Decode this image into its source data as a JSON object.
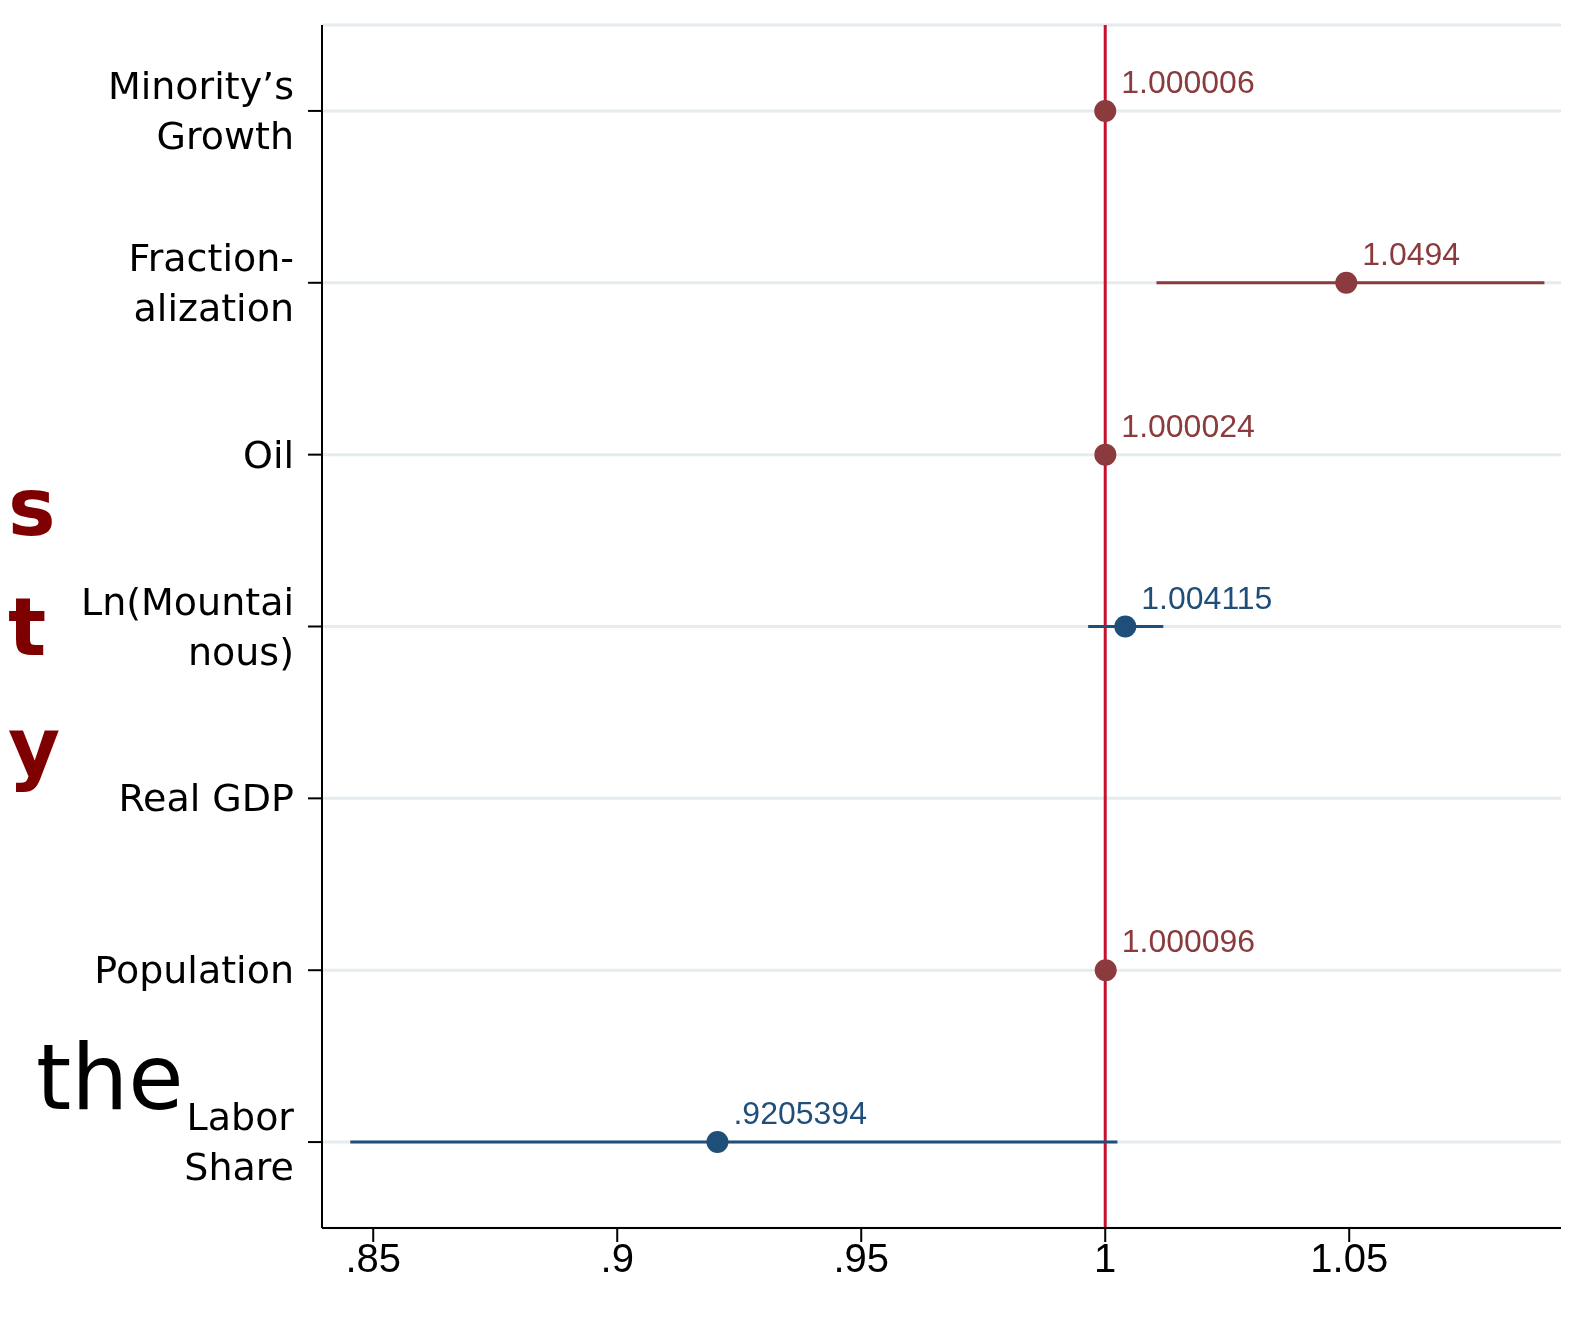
{
  "chart_data": {
    "type": "scatter",
    "orientation": "horizontal",
    "categories": [
      "Minority’s\nGrowth",
      "Fraction-\nalization",
      "Oil",
      "Ln(Mountai\nnous)",
      "Real GDP",
      "Population",
      "Labor\nShare"
    ],
    "series": [
      {
        "name": null,
        "color": "#8b3a3e",
        "values": [
          1.000006,
          1.0494,
          1.000024,
          null,
          null,
          1.000096,
          null
        ],
        "errors": [
          null,
          [
            1.0105,
            1.09
          ],
          null,
          null,
          null,
          null,
          null
        ],
        "value_labels": [
          "1.000006",
          "1.0494",
          "1.000024",
          null,
          null,
          "1.000096",
          null
        ]
      },
      {
        "name": null,
        "color": "#1f4e79",
        "values": [
          null,
          null,
          null,
          1.004115,
          null,
          null,
          0.9205394
        ],
        "errors": [
          null,
          null,
          null,
          [
            0.9965,
            1.0119
          ],
          null,
          null,
          [
            0.8453,
            1.0025
          ]
        ],
        "value_labels": [
          null,
          null,
          null,
          "1.004115",
          null,
          null,
          ".9205394"
        ]
      }
    ],
    "xlim": [
      0.8395,
      1.0934
    ],
    "xticks": [
      {
        "value": 0.85,
        "label": ".85"
      },
      {
        "value": 0.9,
        "label": ".9"
      },
      {
        "value": 0.95,
        "label": ".95"
      },
      {
        "value": 1,
        "label": "1"
      },
      {
        "value": 1.05,
        "label": "1.05"
      }
    ],
    "ref_lines": [
      {
        "axis": "x",
        "value": 1,
        "color": "#c8102e"
      }
    ],
    "grid": "y",
    "marker": "circle",
    "annotations": [
      "s",
      "t",
      "y",
      "the"
    ]
  }
}
